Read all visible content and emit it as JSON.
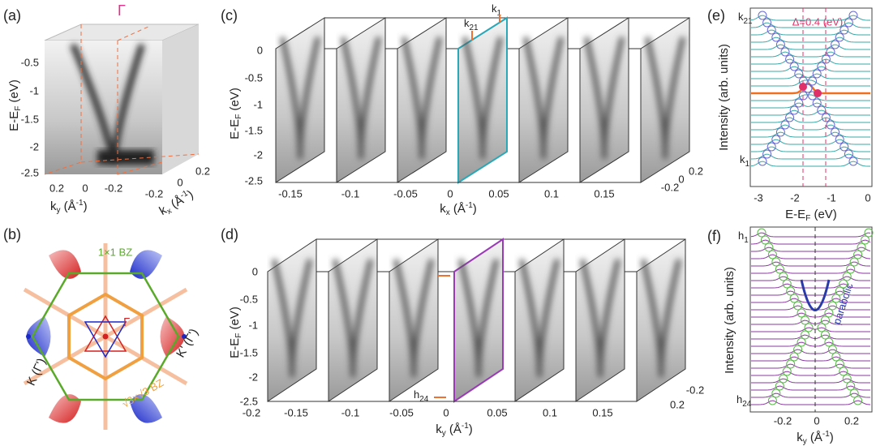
{
  "a": {
    "label": "(a)",
    "gamma": "Γ",
    "yticks": [
      "-0.5",
      "-1",
      "-1.5",
      "-2",
      "-2.5"
    ],
    "ylabel": {
      "main": "E-E",
      "sub": "F",
      "unit": " (eV)"
    },
    "kyticks": [
      "0.2",
      "0",
      "-0.2"
    ],
    "kylabel": {
      "main": "k",
      "sub": "y",
      "unit": " (Å",
      "sup": "-1",
      "close": ")"
    },
    "kxticks": [
      "-0.2",
      "0",
      "0.2"
    ],
    "kxlabel": {
      "main": "k",
      "sub": "x",
      "unit": " (Å",
      "sup": "-1",
      "close": ")"
    }
  },
  "b": {
    "label": "(b)",
    "bz1": "1×1 BZ",
    "gamma": "Γ",
    "kprime": "K' (Γ')",
    "k": "K (Γ')",
    "bz3": "√3×√3 BZ"
  },
  "c": {
    "label": "(c)",
    "yticks": [
      "0",
      "-0.5",
      "-1",
      "-1.5",
      "-2",
      "-2.5"
    ],
    "ylabel": {
      "main": "E-E",
      "sub": "F",
      "unit": " (eV)"
    },
    "xticks": [
      "-0.15",
      "-0.1",
      "-0.05",
      "0",
      "0.05",
      "0.1",
      "0.15"
    ],
    "xlabel": {
      "main": "k",
      "sub": "x",
      "unit": " (Å",
      "sup": "-1",
      "close": ")"
    },
    "zticks": [
      "0.2",
      "0",
      "-0.2"
    ],
    "k21": {
      "main": "k",
      "sub": "21"
    },
    "k1": {
      "main": "k",
      "sub": "1"
    }
  },
  "d": {
    "label": "(d)",
    "yticks": [
      "0",
      "-0.5",
      "-1",
      "-1.5",
      "-2",
      "-2.5"
    ],
    "ylabel": {
      "main": "E-E",
      "sub": "F",
      "unit": " (eV)"
    },
    "xticks": [
      "-0.2",
      "-0.15",
      "-0.1",
      "-0.05",
      "0",
      "0.05",
      "0.1",
      "0.15"
    ],
    "xlabel": {
      "main": "k",
      "sub": "y",
      "unit": " (Å",
      "sup": "-1",
      "close": ")"
    },
    "zticks": [
      "0.2",
      "-0.2"
    ],
    "h1": {
      "main": "h",
      "sub": "1"
    },
    "h24": {
      "main": "h",
      "sub": "24"
    }
  },
  "e": {
    "label": "(e)",
    "delta": "Δ=0.4 (eV)",
    "k21": {
      "main": "k",
      "sub": "21"
    },
    "k1": {
      "main": "k",
      "sub": "1"
    },
    "ylabel": "Intensity (arb. units)",
    "xticks": [
      "-3",
      "-2",
      "-1",
      "0"
    ],
    "xlabel": {
      "main": "E-E",
      "sub": "F",
      "unit": " (eV)"
    }
  },
  "f": {
    "label": "(f)",
    "h1": {
      "main": "h",
      "sub": "1"
    },
    "h24": {
      "main": "h",
      "sub": "24"
    },
    "parabolic": "parabolic",
    "ylabel": "Intensity (arb. units)",
    "xticks": [
      "-0.2",
      "0",
      "0.2"
    ],
    "xlabel": {
      "main": "k",
      "sub": "y",
      "unit": " (Å",
      "sup": "-1",
      "close": ")"
    }
  }
}
